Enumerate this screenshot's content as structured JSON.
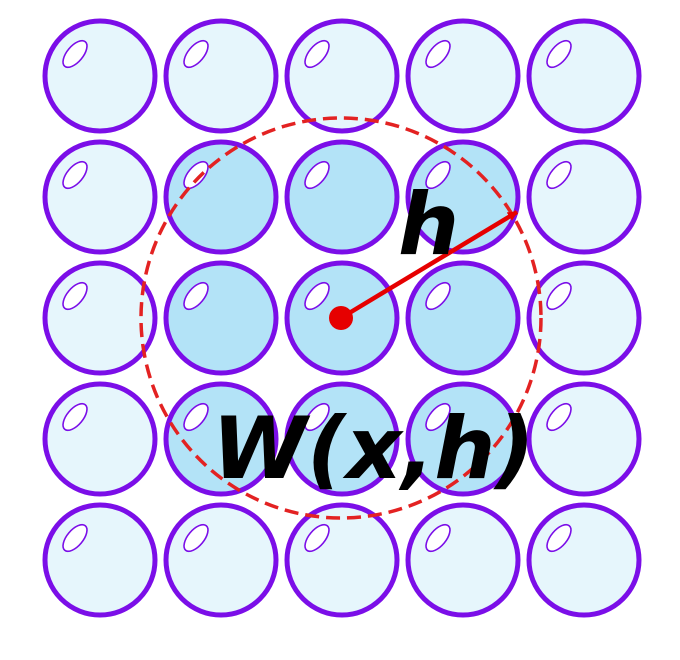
{
  "labels": {
    "radius": "h",
    "kernel": "W(x,h)"
  },
  "grid": {
    "rows": 5,
    "cols": 5,
    "highlighted": [
      [
        1,
        1
      ],
      [
        1,
        2
      ],
      [
        1,
        3
      ],
      [
        2,
        1
      ],
      [
        2,
        2
      ],
      [
        2,
        3
      ],
      [
        3,
        1
      ],
      [
        3,
        2
      ],
      [
        3,
        3
      ]
    ]
  },
  "colors": {
    "particle_stroke": "#7b0ee8",
    "particle_fill": "#e6f6fc",
    "particle_fill_highlight": "#b3e3f7",
    "kernel_circle": "#e32222",
    "center_point": "#e60000",
    "radius_arrow": "#e60000",
    "label_text": "#000000"
  }
}
